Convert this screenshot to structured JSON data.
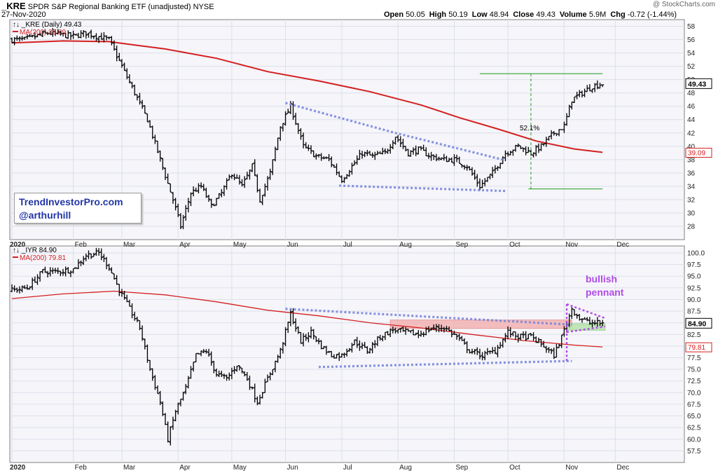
{
  "header": {
    "symbol": "_KRE",
    "name": "SPDR S&P Regional Banking ETF (unadjusted)",
    "exchange": "NYSE",
    "date": "27-Nov-2020",
    "watermark": "@ StockCharts.com",
    "quote": [
      {
        "label": "Open",
        "value": "50.05"
      },
      {
        "label": "High",
        "value": "50.19"
      },
      {
        "label": "Low",
        "value": "48.94"
      },
      {
        "label": "Close",
        "value": "49.43"
      },
      {
        "label": "Volume",
        "value": "5.9M"
      },
      {
        "label": "Chg",
        "value": "-0.72 (-1.44%)"
      }
    ]
  },
  "branding": {
    "line1": "TrendInvestorPro.com",
    "line2": "@arthurhill"
  },
  "colors": {
    "ma_red": "#d42020",
    "trend_blue": "#7b87dd",
    "target_green": "#1f9a1f",
    "pennant_purple": "#b04be6",
    "zone_red": "#f3b4b4",
    "zone_green": "#b7e3ae",
    "bg": "#f5f5fa"
  },
  "chart_data": [
    {
      "type": "ohlc",
      "panel": "top",
      "title": "_KRE (Daily) 49.43",
      "ma_label": "MA(200) 39.09",
      "last_close_label": "49.43",
      "ma_last_label": "39.09",
      "ylim": [
        26,
        59
      ],
      "y_ticks": [
        28,
        30,
        32,
        34,
        36,
        38,
        40,
        42,
        44,
        46,
        48,
        50,
        52,
        54,
        56,
        58
      ],
      "x_tick_labels": [
        "2020",
        "Feb",
        "Mar",
        "Apr",
        "May",
        "Jun",
        "Jul",
        "Aug",
        "Sep",
        "Oct",
        "Nov",
        "Dec"
      ],
      "x_ticks_day": [
        0,
        24,
        43,
        65,
        86,
        107,
        129,
        151,
        173,
        194,
        216,
        236
      ],
      "price_path": [
        [
          0,
          56
        ],
        [
          5,
          56
        ],
        [
          14,
          57
        ],
        [
          24,
          56.5
        ],
        [
          29,
          57
        ],
        [
          38,
          56
        ],
        [
          43,
          52
        ],
        [
          48,
          48
        ],
        [
          53,
          44
        ],
        [
          58,
          38
        ],
        [
          63,
          32
        ],
        [
          66,
          28
        ],
        [
          70,
          33
        ],
        [
          74,
          34
        ],
        [
          78,
          31
        ],
        [
          82,
          33
        ],
        [
          86,
          36
        ],
        [
          90,
          34
        ],
        [
          94,
          37
        ],
        [
          97,
          32
        ],
        [
          101,
          36
        ],
        [
          105,
          43
        ],
        [
          109,
          46
        ],
        [
          114,
          40
        ],
        [
          119,
          38.5
        ],
        [
          124,
          38
        ],
        [
          129,
          35
        ],
        [
          133,
          37
        ],
        [
          137,
          39
        ],
        [
          141,
          38.5
        ],
        [
          146,
          39
        ],
        [
          150,
          41.5
        ],
        [
          155,
          39
        ],
        [
          159,
          39.5
        ],
        [
          164,
          38.5
        ],
        [
          169,
          38
        ],
        [
          173,
          38
        ],
        [
          178,
          37
        ],
        [
          183,
          34
        ],
        [
          188,
          36
        ],
        [
          193,
          39
        ],
        [
          198,
          40
        ],
        [
          203,
          39
        ],
        [
          207,
          40
        ],
        [
          212,
          42
        ],
        [
          216,
          43
        ],
        [
          219,
          47
        ],
        [
          223,
          48
        ],
        [
          227,
          49
        ],
        [
          231,
          49.4
        ]
      ],
      "ma200_path": [
        [
          0,
          55.5
        ],
        [
          20,
          55.8
        ],
        [
          38,
          55.7
        ],
        [
          48,
          55.2
        ],
        [
          60,
          54.6
        ],
        [
          80,
          53.2
        ],
        [
          100,
          51.2
        ],
        [
          120,
          49.8
        ],
        [
          140,
          48.2
        ],
        [
          160,
          46.2
        ],
        [
          175,
          44.3
        ],
        [
          190,
          42.6
        ],
        [
          205,
          40.8
        ],
        [
          220,
          39.6
        ],
        [
          231,
          39.09
        ]
      ],
      "annotations": [
        {
          "type": "trendline",
          "label": "",
          "points": [
            [
              107,
              46.5
            ],
            [
              150,
              42
            ],
            [
              192,
              38
            ]
          ]
        },
        {
          "type": "trendline",
          "label": "",
          "points": [
            [
              128,
              34.1
            ],
            [
              193,
              33.3
            ]
          ]
        },
        {
          "type": "hline",
          "points": [
            [
              183,
              50.9
            ],
            [
              231,
              50.9
            ]
          ]
        },
        {
          "type": "hline",
          "points": [
            [
              202,
              33.6
            ],
            [
              231,
              33.6
            ]
          ]
        },
        {
          "type": "vmeasure",
          "label": "52.1%",
          "from": 33.6,
          "to": 50.9,
          "day": 203
        }
      ]
    },
    {
      "type": "ohlc",
      "panel": "bottom",
      "title": "_IYR 84.90",
      "ma_label": "MA(200) 79.81",
      "last_close_label": "84.90",
      "ma_last_label": "79.81",
      "ylim": [
        55,
        101.5
      ],
      "y_ticks": [
        57.5,
        60.0,
        62.5,
        65.0,
        67.5,
        70.0,
        72.5,
        75.0,
        77.5,
        80.0,
        82.5,
        85.0,
        87.5,
        90.0,
        92.5,
        95.0,
        97.5,
        100.0
      ],
      "x_tick_labels": [
        "2020",
        "Feb",
        "Mar",
        "Apr",
        "May",
        "Jun",
        "Jul",
        "Aug",
        "Sep",
        "Oct",
        "Nov",
        "Dec"
      ],
      "x_ticks_day": [
        0,
        24,
        43,
        65,
        86,
        107,
        129,
        151,
        173,
        194,
        216,
        236
      ],
      "price_path": [
        [
          0,
          92
        ],
        [
          6,
          92.5
        ],
        [
          12,
          96
        ],
        [
          18,
          96
        ],
        [
          24,
          96.5
        ],
        [
          29,
          99.5
        ],
        [
          34,
          100
        ],
        [
          38,
          97
        ],
        [
          42,
          92
        ],
        [
          46,
          88
        ],
        [
          50,
          84
        ],
        [
          54,
          75
        ],
        [
          58,
          68
        ],
        [
          61,
          60
        ],
        [
          64,
          66
        ],
        [
          68,
          71
        ],
        [
          72,
          78
        ],
        [
          76,
          79
        ],
        [
          80,
          74
        ],
        [
          84,
          73
        ],
        [
          88,
          76
        ],
        [
          92,
          73
        ],
        [
          96,
          68
        ],
        [
          100,
          73
        ],
        [
          105,
          79
        ],
        [
          109,
          87
        ],
        [
          113,
          81
        ],
        [
          117,
          83
        ],
        [
          121,
          80
        ],
        [
          125,
          78
        ],
        [
          129,
          78
        ],
        [
          134,
          81
        ],
        [
          139,
          79
        ],
        [
          144,
          82
        ],
        [
          149,
          83.5
        ],
        [
          154,
          83
        ],
        [
          159,
          82.5
        ],
        [
          164,
          83.8
        ],
        [
          169,
          84
        ],
        [
          174,
          82
        ],
        [
          179,
          79
        ],
        [
          184,
          78
        ],
        [
          189,
          79
        ],
        [
          194,
          83
        ],
        [
          198,
          82
        ],
        [
          203,
          82
        ],
        [
          208,
          80
        ],
        [
          212,
          78
        ],
        [
          215,
          82
        ],
        [
          219,
          88
        ],
        [
          222,
          86
        ],
        [
          226,
          85
        ],
        [
          231,
          84.9
        ]
      ],
      "ma200_path": [
        [
          0,
          90.2
        ],
        [
          20,
          91.2
        ],
        [
          40,
          91.8
        ],
        [
          60,
          91
        ],
        [
          80,
          89.5
        ],
        [
          100,
          87.7
        ],
        [
          120,
          86.5
        ],
        [
          140,
          85
        ],
        [
          160,
          83.9
        ],
        [
          180,
          82.5
        ],
        [
          200,
          81.2
        ],
        [
          220,
          80.2
        ],
        [
          231,
          79.81
        ]
      ],
      "annotations": [
        {
          "type": "trendline",
          "label": "",
          "points": [
            [
              107,
              88
            ],
            [
              219,
              84.6
            ]
          ]
        },
        {
          "type": "trendline",
          "label": "",
          "points": [
            [
              120,
              75.5
            ],
            [
              219,
              76.8
            ]
          ]
        },
        {
          "type": "zone",
          "label": "",
          "x": [
            148,
            219
          ],
          "y": [
            83.8,
            85.6
          ]
        },
        {
          "type": "zone",
          "label": "",
          "x": [
            217,
            232
          ],
          "y": [
            83.4,
            84.8
          ]
        },
        {
          "type": "pennant",
          "label": "bullish pennant",
          "points": [
            [
              217,
              89
            ],
            [
              232,
              86
            ]
          ],
          "lower": [
            [
              217,
              83
            ],
            [
              232,
              84.2
            ]
          ]
        }
      ]
    }
  ]
}
